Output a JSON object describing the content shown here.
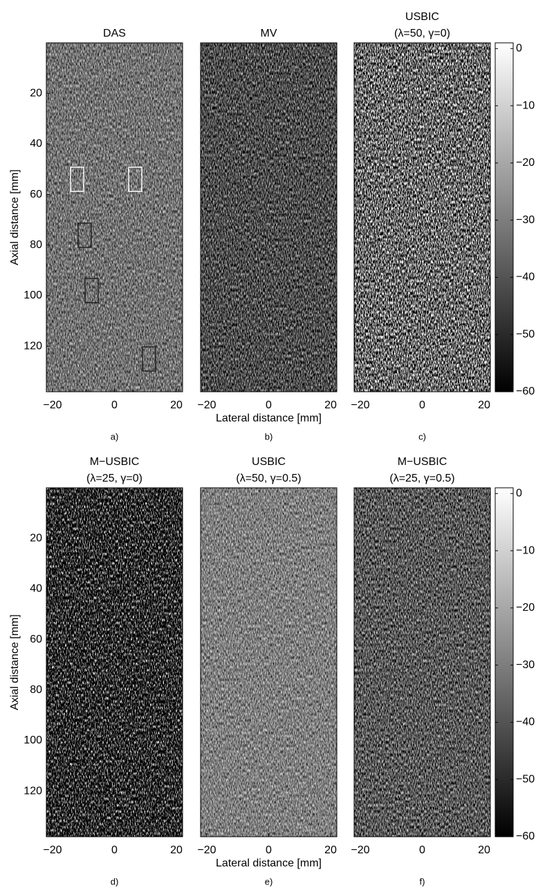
{
  "chart_data": [
    {
      "type": "image",
      "title": [
        "DAS"
      ],
      "xlim": [
        -22,
        22
      ],
      "ylim": [
        0,
        138
      ],
      "xticks": [
        {
          "value": -20,
          "label": "−20"
        },
        0,
        20
      ],
      "yticks": [
        20,
        40,
        60,
        80,
        100,
        120
      ],
      "ylabel": "Axial distance [mm]",
      "panel_label": "a)",
      "colormap": "gray"
    },
    {
      "type": "image",
      "title": [
        "MV"
      ],
      "xlim": [
        -22,
        22
      ],
      "ylim": [
        0,
        138
      ],
      "xticks": [
        {
          "value": -20,
          "label": "−20"
        },
        0,
        20
      ],
      "xlabel": "Lateral distance [mm]",
      "panel_label": "b)",
      "colormap": "gray"
    },
    {
      "type": "image",
      "title": [
        "USBIC",
        "(λ=50, γ=0)"
      ],
      "xlim": [
        -22,
        22
      ],
      "ylim": [
        0,
        138
      ],
      "xticks": [
        {
          "value": -20,
          "label": "−20"
        },
        0,
        20
      ],
      "panel_label": "c)",
      "colormap": "gray",
      "colorbar": {
        "ylim": [
          -60,
          1
        ],
        "yticks": [
          0,
          {
            "value": -10,
            "label": "−10"
          },
          {
            "value": -20,
            "label": "−20"
          },
          {
            "value": -30,
            "label": "−30"
          },
          {
            "value": -40,
            "label": "−40"
          },
          {
            "value": -50,
            "label": "−50"
          },
          {
            "value": -60,
            "label": "−60"
          }
        ]
      }
    },
    {
      "type": "image",
      "title": [
        "M−USBIC",
        "(λ=25, γ=0)"
      ],
      "xlim": [
        -22,
        22
      ],
      "ylim": [
        0,
        138
      ],
      "xticks": [
        {
          "value": -20,
          "label": "−20"
        },
        0,
        20
      ],
      "yticks": [
        20,
        40,
        60,
        80,
        100,
        120
      ],
      "ylabel": "Axial distance [mm]",
      "panel_label": "d)",
      "colormap": "gray"
    },
    {
      "type": "image",
      "title": [
        "USBIC",
        "(λ=50, γ=0.5)"
      ],
      "xlim": [
        -22,
        22
      ],
      "ylim": [
        0,
        138
      ],
      "xticks": [
        {
          "value": -20,
          "label": "−20"
        },
        0,
        20
      ],
      "xlabel": "Lateral distance [mm]",
      "panel_label": "e)",
      "colormap": "gray"
    },
    {
      "type": "image",
      "title": [
        "M−USBIC",
        "(λ=25, γ=0.5)"
      ],
      "xlim": [
        -22,
        22
      ],
      "ylim": [
        0,
        138
      ],
      "xticks": [
        {
          "value": -20,
          "label": "−20"
        },
        0,
        20
      ],
      "panel_label": "f)",
      "colormap": "gray",
      "colorbar": {
        "ylim": [
          -60,
          1
        ],
        "yticks": [
          0,
          {
            "value": -10,
            "label": "−10"
          },
          {
            "value": -20,
            "label": "−20"
          },
          {
            "value": -30,
            "label": "−30"
          },
          {
            "value": -40,
            "label": "−40"
          },
          {
            "value": -50,
            "label": "−50"
          },
          {
            "value": -60,
            "label": "−60"
          }
        ]
      }
    }
  ]
}
